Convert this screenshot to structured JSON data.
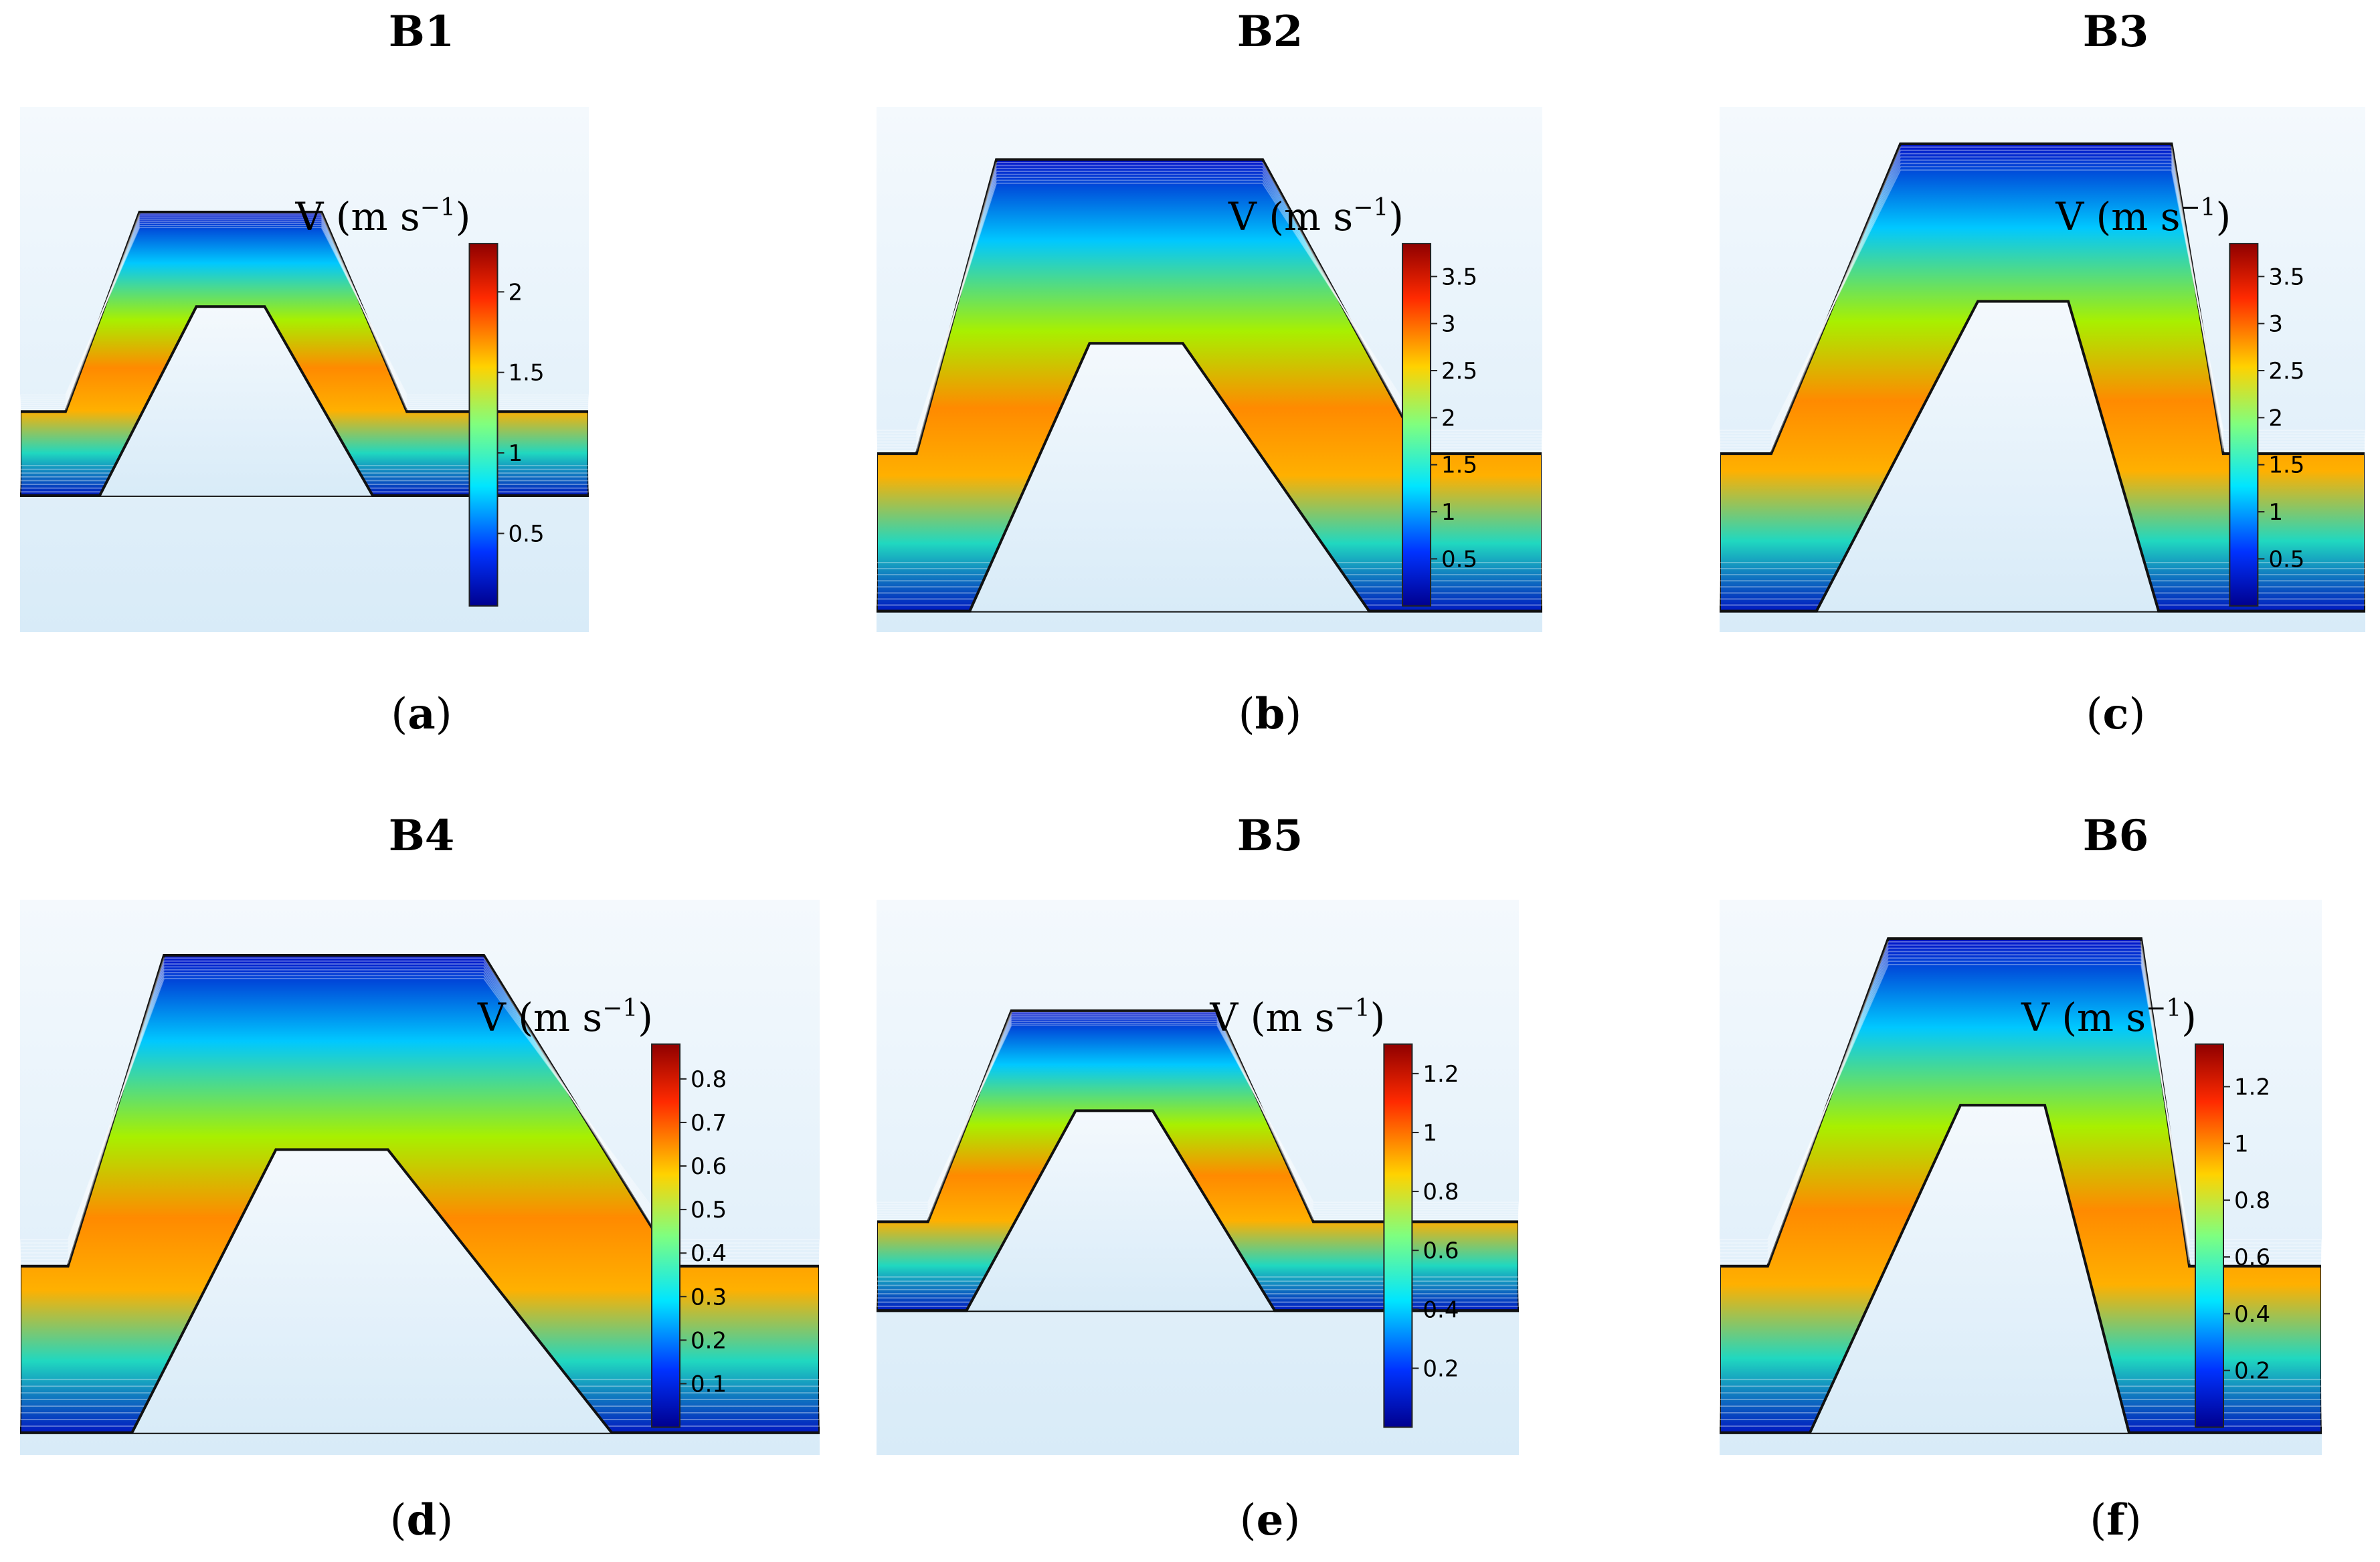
{
  "colorbar_title": "V (m s",
  "colorbar_title_sup": "−1",
  "colorbar_title_close": ")",
  "panels": [
    {
      "title": "B1",
      "caption": "a",
      "ticks": [
        "2",
        "1.5",
        "1",
        "0.5"
      ],
      "tick_values": [
        2,
        1.5,
        1,
        0.5
      ],
      "vmin": 0.05,
      "vmax": 2.3,
      "shape": "trapezoid-small"
    },
    {
      "title": "B2",
      "caption": "b",
      "ticks": [
        "3.5",
        "3",
        "2.5",
        "2",
        "1.5",
        "1",
        "0.5"
      ],
      "tick_values": [
        3.5,
        3,
        2.5,
        2,
        1.5,
        1,
        0.5
      ],
      "vmin": 0.0,
      "vmax": 3.85,
      "shape": "trapezoid-wide"
    },
    {
      "title": "B3",
      "caption": "c",
      "ticks": [
        "3.5",
        "3",
        "2.5",
        "2",
        "1.5",
        "1",
        "0.5"
      ],
      "tick_values": [
        3.5,
        3,
        2.5,
        2,
        1.5,
        1,
        0.5
      ],
      "vmin": 0.0,
      "vmax": 3.85,
      "shape": "rectangular"
    },
    {
      "title": "B4",
      "caption": "d",
      "ticks": [
        "0.8",
        "0.7",
        "0.6",
        "0.5",
        "0.4",
        "0.3",
        "0.2",
        "0.1"
      ],
      "tick_values": [
        0.8,
        0.7,
        0.6,
        0.5,
        0.4,
        0.3,
        0.2,
        0.1
      ],
      "vmin": 0.0,
      "vmax": 0.88,
      "shape": "trapezoid-wide"
    },
    {
      "title": "B5",
      "caption": "e",
      "ticks": [
        "1.2",
        "1",
        "0.8",
        "0.6",
        "0.4",
        "0.2"
      ],
      "tick_values": [
        1.2,
        1,
        0.8,
        0.6,
        0.4,
        0.2
      ],
      "vmin": 0.0,
      "vmax": 1.3,
      "shape": "trapezoid-small"
    },
    {
      "title": "B6",
      "caption": "f",
      "ticks": [
        "1.2",
        "1",
        "0.8",
        "0.6",
        "0.4",
        "0.2"
      ],
      "tick_values": [
        1.2,
        1,
        0.8,
        0.6,
        0.4,
        0.2
      ],
      "vmin": 0.0,
      "vmax": 1.35,
      "shape": "rectangular"
    }
  ]
}
